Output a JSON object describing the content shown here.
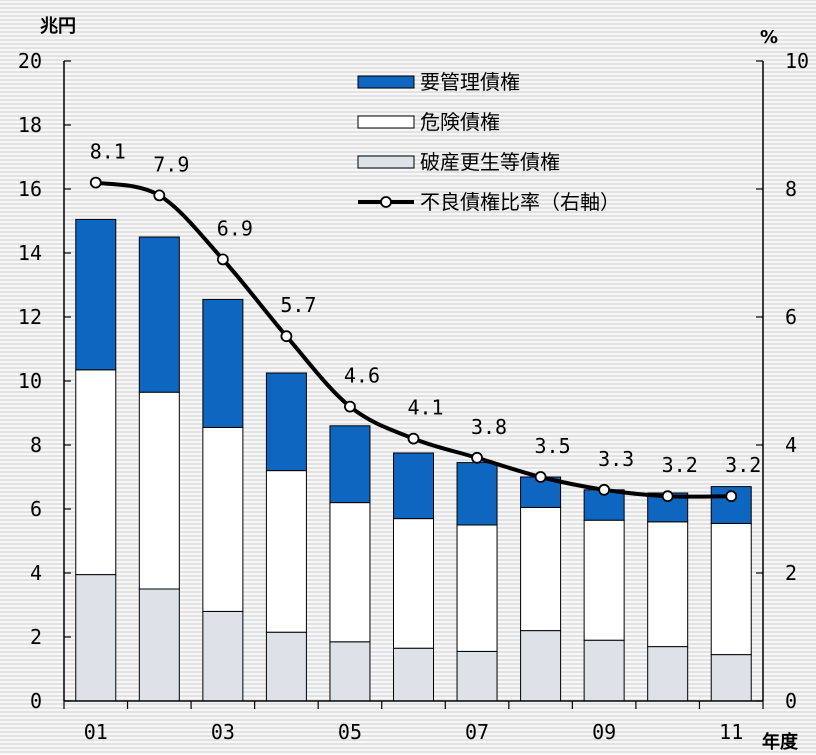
{
  "chart_data": {
    "type": "bar",
    "categories": [
      "01",
      "02",
      "03",
      "04",
      "05",
      "06",
      "07",
      "08",
      "09",
      "10",
      "11"
    ],
    "x_tick_labels": [
      "01",
      "",
      "03",
      "",
      "05",
      "",
      "07",
      "",
      "09",
      "",
      "11"
    ],
    "x_unit": "年度",
    "y_left": {
      "unit": "兆円",
      "lim": [
        0,
        20
      ],
      "ticks": [
        "0",
        "2",
        "4",
        "6",
        "8",
        "10",
        "12",
        "14",
        "16",
        "18",
        "20"
      ]
    },
    "y_right": {
      "unit": "%",
      "lim": [
        0,
        10
      ],
      "ticks": [
        "0",
        "2",
        "4",
        "6",
        "8",
        "10"
      ]
    },
    "series": [
      {
        "name": "破産更生等債権",
        "kind": "stacked-bar",
        "axis": "left",
        "color": "#dde1e8",
        "values": [
          3.95,
          3.5,
          2.8,
          2.15,
          1.85,
          1.65,
          1.55,
          2.2,
          1.9,
          1.7,
          1.45
        ]
      },
      {
        "name": "危険債権",
        "kind": "stacked-bar",
        "axis": "left",
        "color": "#ffffff",
        "values": [
          6.4,
          6.15,
          5.75,
          5.05,
          4.35,
          4.05,
          3.95,
          3.85,
          3.75,
          3.9,
          4.1
        ]
      },
      {
        "name": "要管理債権",
        "kind": "stacked-bar",
        "axis": "left",
        "color": "#0f66c0",
        "values": [
          4.7,
          4.85,
          4.0,
          3.05,
          2.4,
          2.05,
          1.95,
          0.95,
          0.95,
          0.9,
          1.15
        ]
      },
      {
        "name": "不良債権比率（右軸）",
        "kind": "line",
        "axis": "right",
        "color": "#000000",
        "values": [
          8.1,
          7.9,
          6.9,
          5.7,
          4.6,
          4.1,
          3.8,
          3.5,
          3.3,
          3.2,
          3.2
        ],
        "labels": [
          "8.1",
          "7.9",
          "6.9",
          "5.7",
          "4.6",
          "4.1",
          "3.8",
          "3.5",
          "3.3",
          "3.2",
          "3.2"
        ]
      }
    ],
    "legend": {
      "position": "top-center",
      "items": [
        "要管理債権",
        "危険債権",
        "破産更生等債権",
        "不良債権比率（右軸）"
      ]
    }
  }
}
